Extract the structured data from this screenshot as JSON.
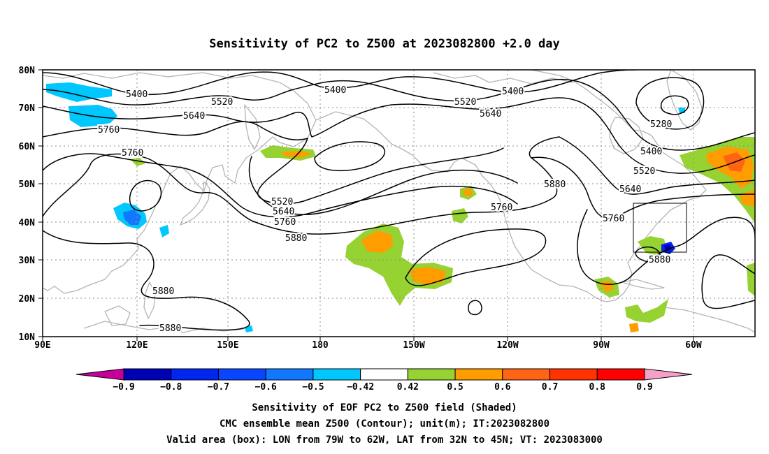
{
  "title": "Sensitivity of PC2 to Z500 at 2023082800 +2.0 day",
  "map": {
    "lon_range": [
      "90E",
      "30W"
    ],
    "lat_range": [
      "10N",
      "80N"
    ],
    "lon_ticks": [
      "90E",
      "120E",
      "150E",
      "180",
      "150W",
      "120W",
      "90W",
      "60W"
    ],
    "lat_ticks": [
      "80N",
      "70N",
      "60N",
      "50N",
      "40N",
      "30N",
      "20N",
      "10N"
    ],
    "grid": "dotted",
    "coastline_color": "#b4b4b4"
  },
  "contour_labels": {
    "c1": "5400",
    "c2": "5520",
    "c3": "5640",
    "c4": "5760",
    "c5": "5400",
    "c6": "5520",
    "c7": "5640",
    "c8": "5400",
    "c9": "5280",
    "c10": "5400",
    "c11": "5520",
    "c12": "5640",
    "c13": "5880",
    "c14": "5760",
    "c15": "5760",
    "c16": "5520",
    "c17": "5640",
    "c18": "5760",
    "c19": "5880",
    "c20": "5760",
    "c21": "5880",
    "c22": "5880",
    "c23": "5880"
  },
  "colorbar": {
    "labels": [
      "−0.9",
      "−0.8",
      "−0.7",
      "−0.6",
      "−0.5",
      "−0.42",
      "0.42",
      "0.5",
      "0.6",
      "0.7",
      "0.8",
      "0.9"
    ],
    "colors": [
      "#c8009a",
      "#0000b4",
      "#0026f0",
      "#0a46ff",
      "#0f78ff",
      "#00c8ff",
      "#ffffff",
      "#96d232",
      "#ff9c00",
      "#ff6414",
      "#ff3200",
      "#ff0000",
      "#f5a0c8"
    ]
  },
  "valid_box": {
    "lon": [
      "79W",
      "62W"
    ],
    "lat": [
      "32N",
      "45N"
    ]
  },
  "caption": {
    "line1": "Sensitivity of EOF PC2 to Z500 field (Shaded)",
    "line2": "CMC ensemble mean Z500 (Contour); unit(m); IT:2023082800",
    "line3": "Valid area (box): LON from 79W to 62W, LAT from 32N to 45N; VT: 2023083000"
  }
}
